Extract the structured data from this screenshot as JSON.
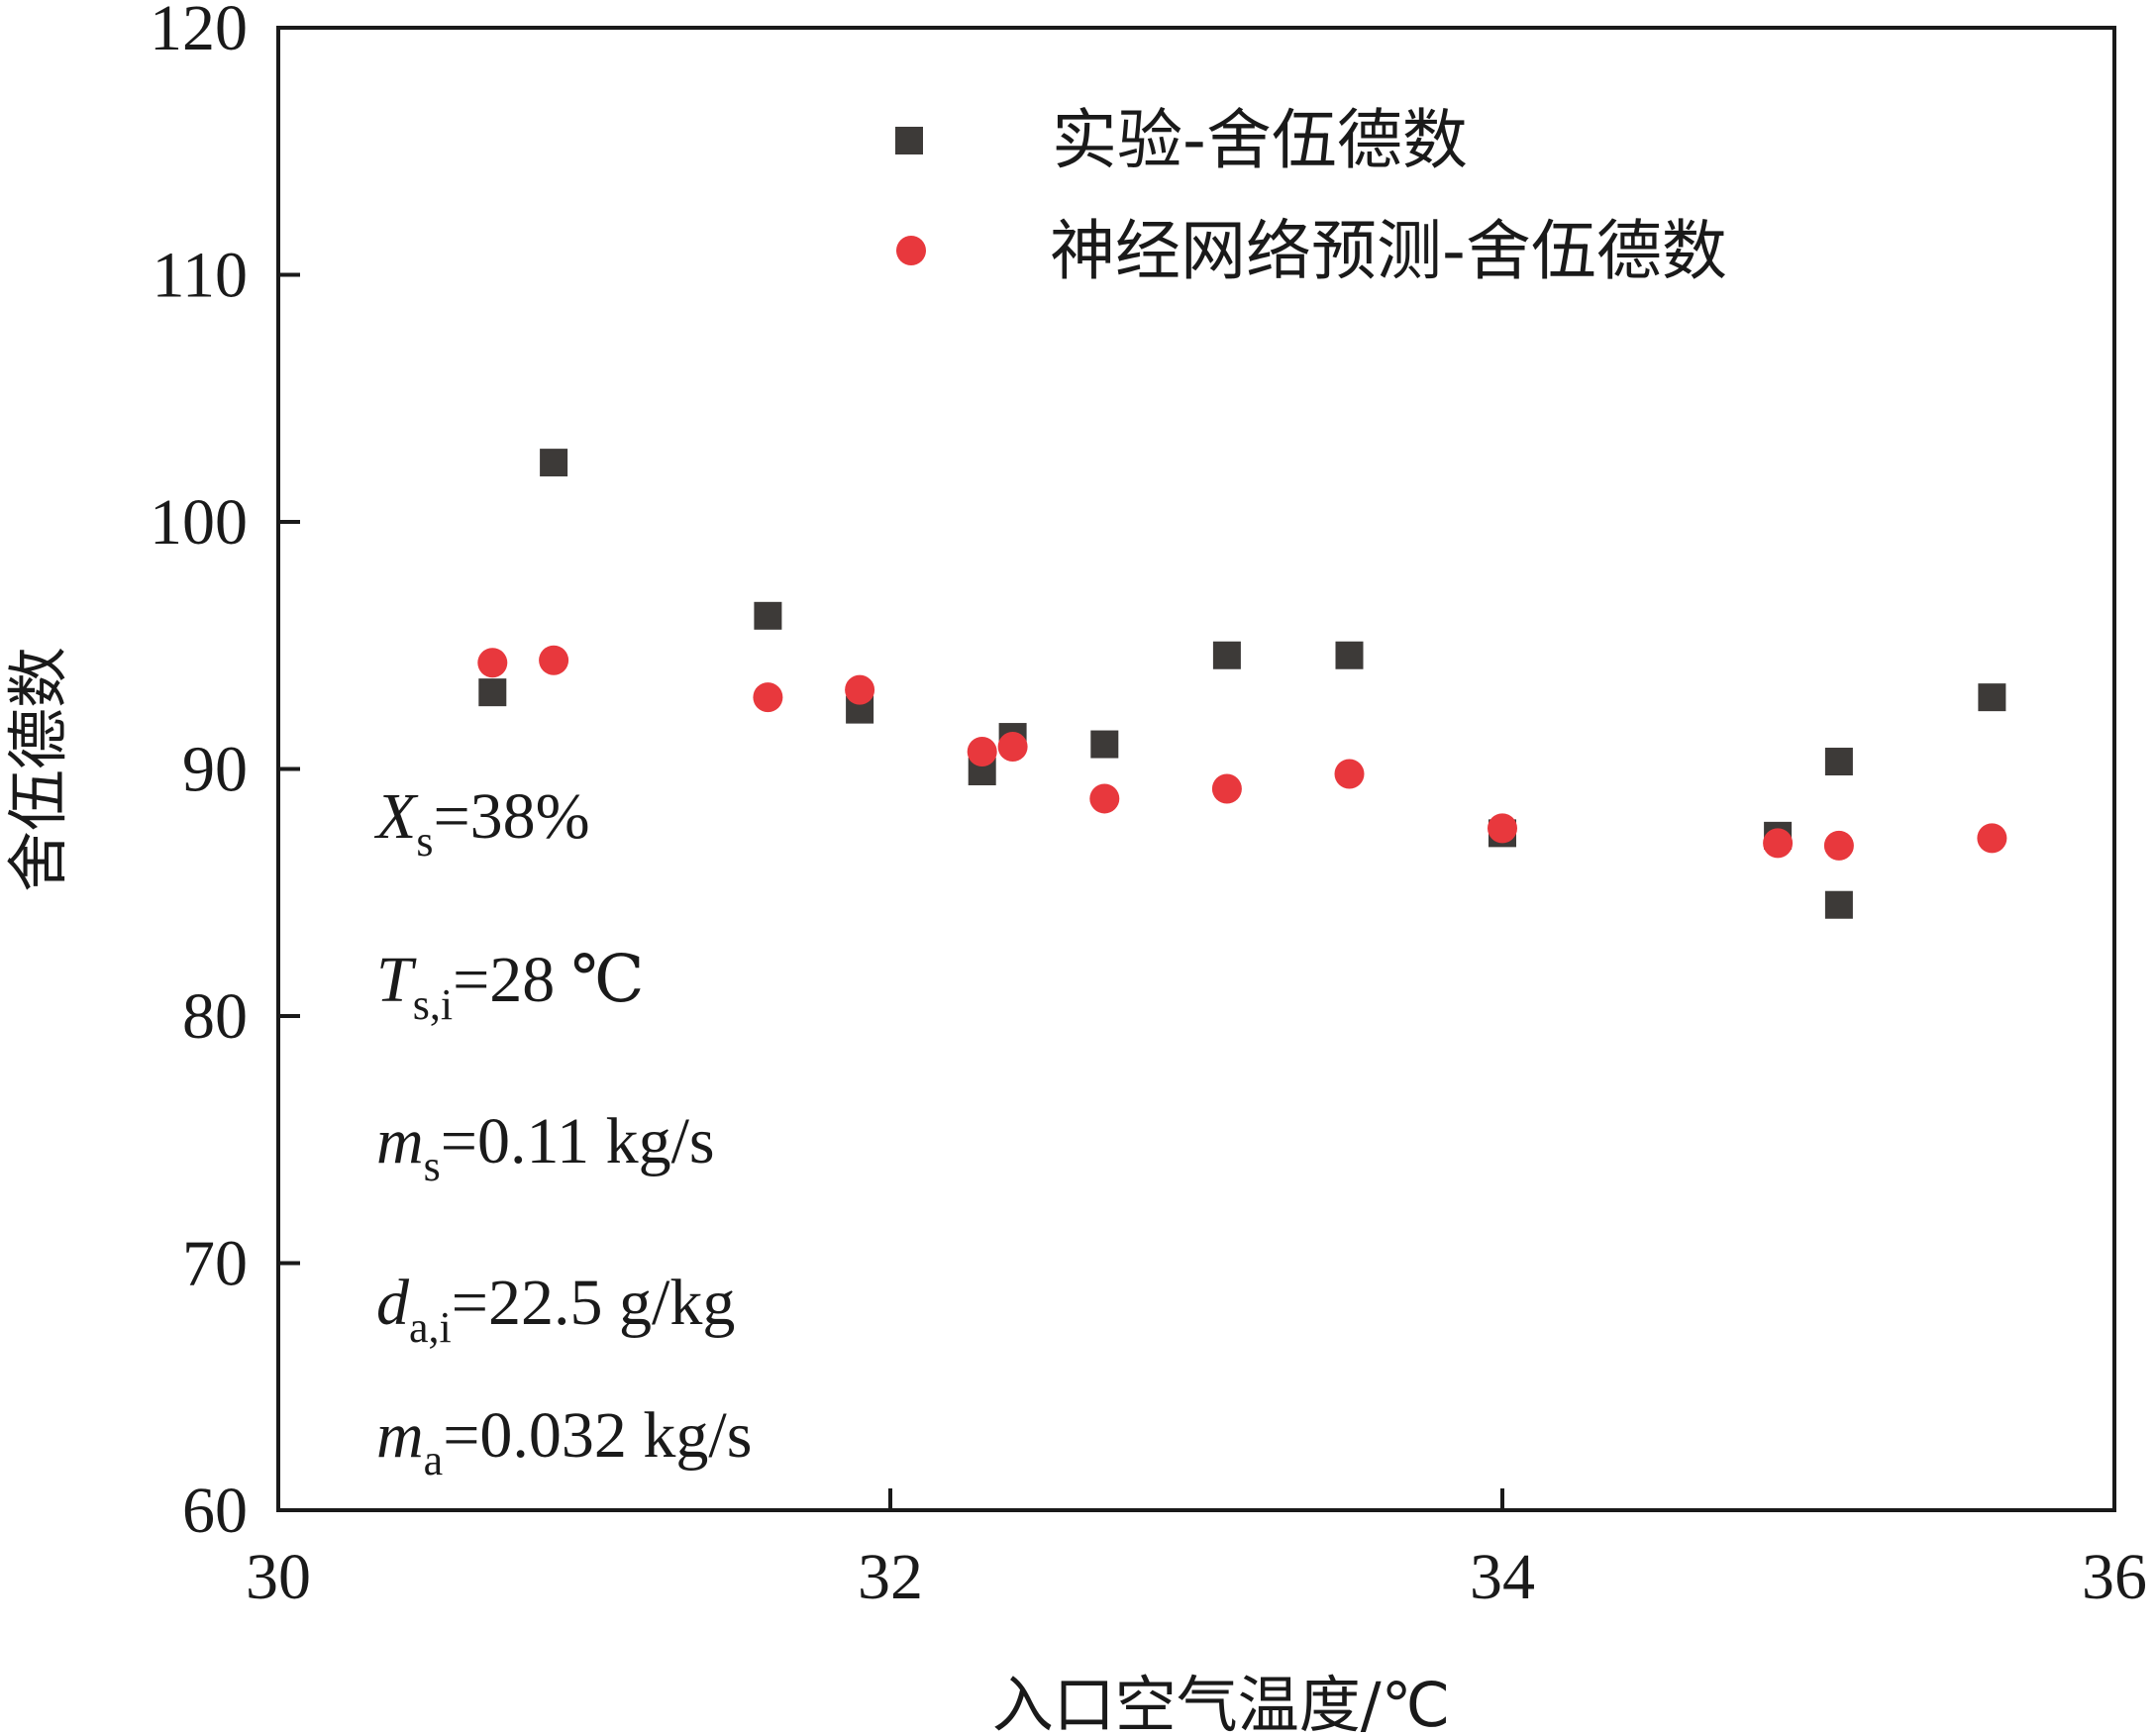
{
  "chart_data": {
    "type": "scatter",
    "title": "",
    "xlabel": "入口空气温度/℃",
    "ylabel": "舍伍德数",
    "xlim": [
      30,
      36
    ],
    "ylim": [
      60,
      120
    ],
    "xticks": [
      "30",
      "32",
      "34",
      "36"
    ],
    "yticks": [
      "60",
      "70",
      "80",
      "90",
      "100",
      "110",
      "120"
    ],
    "legend_position": "top-right",
    "series": [
      {
        "name": "实验-舍伍德数",
        "marker": "square",
        "color": "#3d3a38",
        "x": [
          30.7,
          30.9,
          31.6,
          31.9,
          32.3,
          32.4,
          32.7,
          33.1,
          33.5,
          34.0,
          34.9,
          35.1,
          35.1,
          35.6
        ],
        "y": [
          93.1,
          102.4,
          96.2,
          92.4,
          89.9,
          91.3,
          91.0,
          94.6,
          94.6,
          87.4,
          87.3,
          90.3,
          84.5,
          92.9
        ]
      },
      {
        "name": "神经网络预测-舍伍德数",
        "marker": "circle",
        "color": "#e8383d",
        "x": [
          30.7,
          30.9,
          31.6,
          31.9,
          32.3,
          32.4,
          32.7,
          33.1,
          33.5,
          34.0,
          34.9,
          35.1,
          35.6
        ],
        "y": [
          94.3,
          94.4,
          92.9,
          93.2,
          90.7,
          90.9,
          88.8,
          89.2,
          89.8,
          87.6,
          87.0,
          86.9,
          87.2
        ]
      }
    ],
    "annotations": [
      {
        "sym": "X",
        "sub": "s",
        "rest": "=38%"
      },
      {
        "sym": "T",
        "sub": "s,i",
        "rest": "=28 ℃"
      },
      {
        "sym": "m",
        "sub": "s",
        "rest": "=0.11 kg/s"
      },
      {
        "sym": "d",
        "sub": "a,i",
        "rest": "=22.5 g/kg"
      },
      {
        "sym": "m",
        "sub": "a",
        "rest": "=0.032 kg/s"
      }
    ]
  }
}
